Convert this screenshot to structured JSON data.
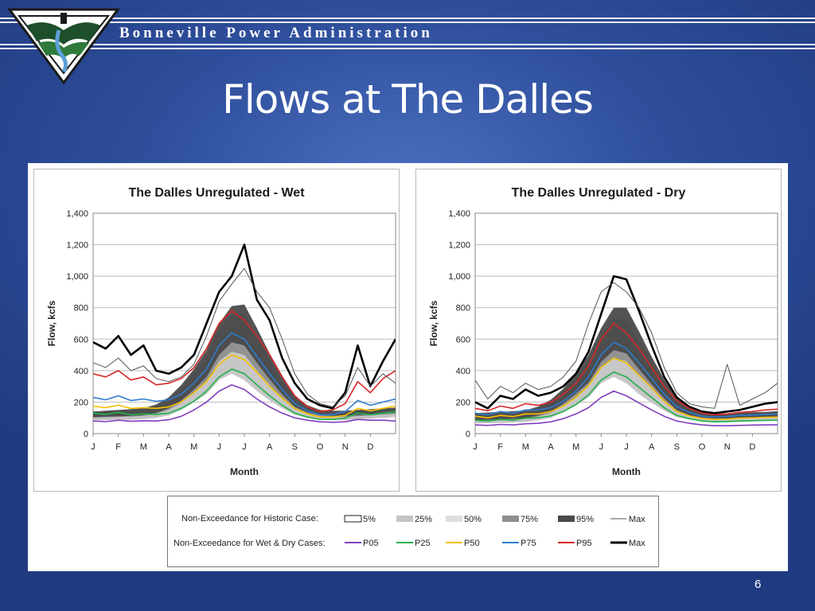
{
  "header": {
    "organization": "Bonneville Power Administration"
  },
  "slide": {
    "title": "Flows at The Dalles",
    "page_number": "6"
  },
  "colors": {
    "P05": "#7f3fbf",
    "P25": "#22b14c",
    "P50": "#f5c000",
    "P75": "#2e7bcf",
    "P95": "#d62728",
    "Max": "#000000",
    "HistMax": "#555555"
  },
  "chart_data": [
    {
      "type": "line",
      "title": "The Dalles Unregulated - Wet",
      "xlabel": "Month",
      "ylabel": "Flow, kcfs",
      "ylim": [
        0,
        1400
      ],
      "yticks": [
        "0",
        "200",
        "400",
        "600",
        "800",
        "1,000",
        "1,200",
        "1,400"
      ],
      "categories": [
        "J",
        "F",
        "M",
        "A",
        "M",
        "J",
        "J",
        "A",
        "S",
        "O",
        "N",
        "D"
      ],
      "x": [
        0,
        0.5,
        1,
        1.5,
        2,
        2.5,
        3,
        3.5,
        4,
        4.5,
        5,
        5.5,
        6,
        6.5,
        7,
        7.5,
        8,
        8.5,
        9,
        9.5,
        10,
        10.5,
        11,
        11.5,
        12
      ],
      "bands": [
        {
          "name": "5%",
          "lower": [
            90,
            92,
            95,
            95,
            100,
            110,
            130,
            170,
            220,
            280,
            400,
            430,
            380,
            300,
            240,
            180,
            130,
            110,
            100,
            95,
            95,
            100,
            105,
            110,
            115
          ],
          "upper": [
            110,
            115,
            118,
            120,
            125,
            140,
            170,
            220,
            300,
            380,
            520,
            600,
            580,
            470,
            360,
            260,
            180,
            140,
            120,
            115,
            115,
            120,
            125,
            130,
            135
          ]
        },
        {
          "name": "25%",
          "lower": [
            85,
            85,
            88,
            88,
            92,
            100,
            115,
            150,
            200,
            250,
            340,
            380,
            340,
            270,
            210,
            160,
            120,
            100,
            90,
            85,
            85,
            90,
            95,
            100,
            105
          ],
          "upper": [
            120,
            125,
            128,
            130,
            135,
            155,
            190,
            250,
            330,
            420,
            580,
            680,
            660,
            540,
            410,
            300,
            200,
            155,
            130,
            125,
            125,
            130,
            135,
            140,
            145
          ]
        },
        {
          "name": "75%",
          "lower": [
            100,
            102,
            105,
            108,
            112,
            125,
            150,
            195,
            260,
            330,
            460,
            520,
            500,
            400,
            310,
            225,
            155,
            125,
            110,
            105,
            105,
            110,
            115,
            120,
            125
          ],
          "upper": [
            135,
            140,
            145,
            148,
            152,
            175,
            215,
            290,
            380,
            490,
            650,
            760,
            760,
            620,
            470,
            340,
            225,
            170,
            145,
            138,
            138,
            145,
            150,
            155,
            160
          ]
        },
        {
          "name": "95%",
          "lower": [
            105,
            108,
            110,
            112,
            118,
            132,
            160,
            210,
            280,
            360,
            500,
            580,
            560,
            450,
            345,
            250,
            170,
            135,
            118,
            112,
            112,
            118,
            122,
            128,
            132
          ],
          "upper": [
            140,
            145,
            150,
            155,
            160,
            185,
            230,
            310,
            410,
            530,
            700,
            810,
            820,
            670,
            510,
            370,
            240,
            180,
            150,
            145,
            145,
            150,
            155,
            160,
            165
          ]
        }
      ],
      "series": [
        {
          "name": "Max",
          "values": [
            580,
            540,
            620,
            500,
            560,
            400,
            380,
            420,
            500,
            700,
            900,
            1000,
            1200,
            850,
            720,
            480,
            320,
            220,
            180,
            160,
            260,
            560,
            300,
            460,
            600
          ]
        },
        {
          "name": "P95",
          "values": [
            380,
            360,
            400,
            340,
            360,
            310,
            320,
            350,
            420,
            540,
            700,
            780,
            720,
            620,
            500,
            360,
            240,
            170,
            140,
            150,
            190,
            330,
            260,
            350,
            400
          ]
        },
        {
          "name": "P75",
          "values": [
            230,
            215,
            240,
            210,
            220,
            205,
            215,
            250,
            320,
            410,
            560,
            640,
            600,
            490,
            380,
            280,
            190,
            145,
            120,
            120,
            140,
            210,
            180,
            200,
            220
          ]
        },
        {
          "name": "P50",
          "values": [
            175,
            165,
            180,
            160,
            165,
            160,
            170,
            200,
            260,
            330,
            440,
            500,
            470,
            390,
            300,
            225,
            160,
            125,
            105,
            105,
            115,
            160,
            145,
            160,
            175
          ]
        },
        {
          "name": "P25",
          "values": [
            130,
            122,
            135,
            120,
            125,
            122,
            130,
            160,
            205,
            270,
            360,
            410,
            380,
            310,
            240,
            180,
            130,
            105,
            90,
            90,
            98,
            130,
            120,
            130,
            140
          ]
        },
        {
          "name": "P05",
          "values": [
            80,
            76,
            85,
            78,
            82,
            80,
            88,
            110,
            150,
            200,
            270,
            310,
            280,
            220,
            170,
            130,
            100,
            85,
            75,
            72,
            75,
            90,
            85,
            85,
            80
          ]
        },
        {
          "name": "HistMax",
          "values": [
            450,
            420,
            480,
            400,
            430,
            350,
            330,
            360,
            440,
            620,
            840,
            950,
            1050,
            900,
            800,
            600,
            380,
            250,
            190,
            170,
            240,
            420,
            300,
            380,
            320
          ]
        }
      ]
    },
    {
      "type": "line",
      "title": "The Dalles Unregulated - Dry",
      "xlabel": "Month",
      "ylabel": "Flow, kcfs",
      "ylim": [
        0,
        1400
      ],
      "yticks": [
        "0",
        "200",
        "400",
        "600",
        "800",
        "1,000",
        "1,200",
        "1,400"
      ],
      "categories": [
        "J",
        "F",
        "M",
        "A",
        "M",
        "J",
        "J",
        "A",
        "S",
        "O",
        "N",
        "D"
      ],
      "x": [
        0,
        0.5,
        1,
        1.5,
        2,
        2.5,
        3,
        3.5,
        4,
        4.5,
        5,
        5.5,
        6,
        6.5,
        7,
        7.5,
        8,
        8.5,
        9,
        9.5,
        10,
        10.5,
        11,
        11.5,
        12
      ],
      "bands": [
        {
          "name": "5%",
          "lower": [
            70,
            72,
            75,
            78,
            82,
            95,
            115,
            150,
            200,
            260,
            360,
            400,
            360,
            280,
            220,
            160,
            115,
            95,
            85,
            80,
            80,
            82,
            85,
            88,
            90
          ],
          "upper": [
            95,
            98,
            100,
            105,
            110,
            125,
            155,
            200,
            270,
            350,
            480,
            560,
            540,
            440,
            340,
            240,
            165,
            125,
            105,
            98,
            98,
            100,
            105,
            108,
            110
          ]
        },
        {
          "name": "25%",
          "lower": [
            65,
            66,
            68,
            70,
            74,
            85,
            100,
            135,
            180,
            230,
            320,
            360,
            320,
            250,
            195,
            145,
            105,
            88,
            78,
            72,
            72,
            75,
            78,
            80,
            82
          ],
          "upper": [
            105,
            108,
            112,
            115,
            120,
            140,
            175,
            230,
            310,
            400,
            540,
            640,
            620,
            500,
            380,
            270,
            180,
            135,
            112,
            105,
            105,
            108,
            112,
            115,
            118
          ]
        },
        {
          "name": "75%",
          "lower": [
            80,
            82,
            85,
            88,
            92,
            108,
            130,
            175,
            235,
            300,
            420,
            480,
            460,
            370,
            285,
            205,
            140,
            112,
            98,
            92,
            92,
            95,
            98,
            100,
            102
          ],
          "upper": [
            120,
            124,
            128,
            132,
            138,
            160,
            200,
            265,
            355,
            460,
            620,
            730,
            730,
            590,
            450,
            320,
            210,
            155,
            128,
            120,
            120,
            124,
            128,
            130,
            134
          ]
        },
        {
          "name": "95%",
          "lower": [
            85,
            88,
            90,
            94,
            98,
            115,
            140,
            190,
            255,
            325,
            455,
            530,
            510,
            410,
            315,
            225,
            150,
            118,
            102,
            96,
            96,
            100,
            102,
            105,
            108
          ],
          "upper": [
            130,
            134,
            138,
            142,
            148,
            172,
            215,
            285,
            385,
            500,
            670,
            800,
            800,
            650,
            490,
            345,
            225,
            165,
            135,
            128,
            128,
            132,
            136,
            138,
            142
          ]
        }
      ],
      "series": [
        {
          "name": "Max",
          "values": [
            200,
            160,
            240,
            220,
            280,
            240,
            260,
            300,
            380,
            520,
            760,
            1000,
            980,
            780,
            560,
            360,
            230,
            170,
            140,
            130,
            140,
            150,
            170,
            190,
            200
          ]
        },
        {
          "name": "P95",
          "values": [
            160,
            145,
            175,
            160,
            190,
            180,
            200,
            250,
            320,
            430,
            600,
            700,
            640,
            540,
            420,
            300,
            210,
            160,
            130,
            120,
            125,
            135,
            140,
            150,
            155
          ]
        },
        {
          "name": "P75",
          "values": [
            130,
            120,
            140,
            130,
            150,
            150,
            165,
            205,
            270,
            360,
            500,
            580,
            540,
            450,
            350,
            250,
            170,
            135,
            110,
            105,
            108,
            115,
            118,
            122,
            125
          ]
        },
        {
          "name": "P50",
          "values": [
            110,
            100,
            115,
            108,
            125,
            125,
            140,
            175,
            230,
            305,
            420,
            480,
            450,
            370,
            290,
            205,
            140,
            112,
            95,
            90,
            92,
            98,
            100,
            103,
            105
          ]
        },
        {
          "name": "P25",
          "values": [
            85,
            80,
            90,
            85,
            98,
            100,
            112,
            140,
            185,
            245,
            340,
            390,
            360,
            295,
            230,
            165,
            115,
            95,
            80,
            75,
            77,
            80,
            82,
            84,
            86
          ]
        },
        {
          "name": "P05",
          "values": [
            55,
            52,
            58,
            55,
            62,
            65,
            75,
            95,
            125,
            165,
            230,
            270,
            240,
            195,
            150,
            110,
            80,
            65,
            55,
            50,
            50,
            52,
            54,
            55,
            56
          ]
        },
        {
          "name": "HistMax",
          "values": [
            340,
            220,
            300,
            260,
            320,
            280,
            300,
            360,
            460,
            700,
            900,
            960,
            900,
            800,
            640,
            420,
            260,
            190,
            170,
            160,
            440,
            180,
            220,
            260,
            320
          ]
        }
      ]
    }
  ],
  "legend": {
    "row1_label": "Non-Exceedance for Historic Case:",
    "row2_label": "Non-Exceedance for Wet & Dry Cases:",
    "row1_items": [
      "5%",
      "25%",
      "50%",
      "75%",
      "95%",
      "Max"
    ],
    "row2_items": [
      "P05",
      "P25",
      "P50",
      "P75",
      "P95",
      "Max"
    ]
  }
}
